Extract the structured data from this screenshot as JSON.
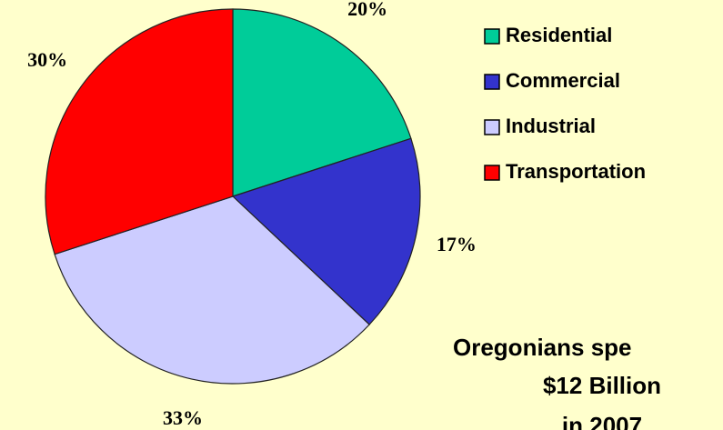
{
  "chart_data": {
    "type": "pie",
    "categories": [
      "Residential",
      "Commercial",
      "Industrial",
      "Transportation"
    ],
    "values": [
      20,
      17,
      33,
      30
    ],
    "value_labels": [
      "20%",
      "17%",
      "33%",
      "30%"
    ],
    "colors": [
      "#00cc99",
      "#3333cc",
      "#ccccff",
      "#ff0000"
    ],
    "legend": "right",
    "annotations": [
      "Oregonians spe",
      "$12 Billion",
      "in 2007"
    ]
  }
}
